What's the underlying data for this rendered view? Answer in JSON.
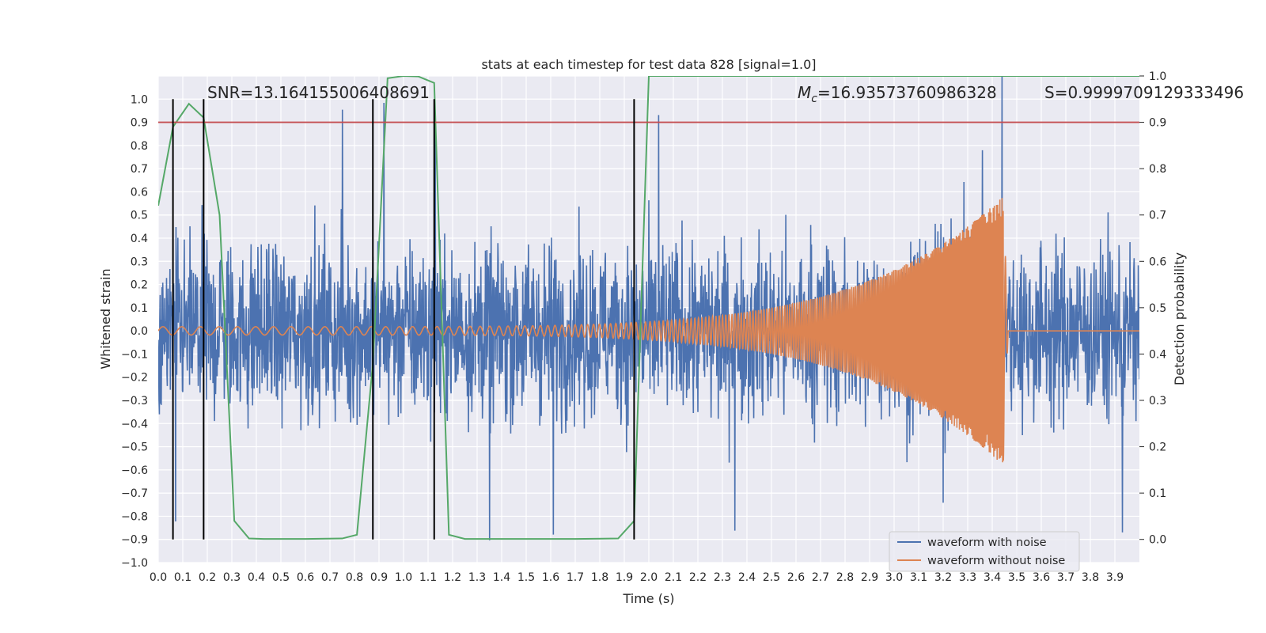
{
  "chart_data": {
    "type": "line",
    "title": "stats at each timestep for test data 828 [signal=1.0]",
    "xlabel": "Time (s)",
    "ylabel": "Whitened strain",
    "y2label": "Detection probability",
    "xlim": [
      0.0,
      4.0
    ],
    "ylim": [
      -1.0,
      1.1
    ],
    "y2lim": [
      -0.05,
      1.0
    ],
    "x_ticks": [
      0.0,
      0.1,
      0.2,
      0.3,
      0.4,
      0.5,
      0.6,
      0.7,
      0.8,
      0.9,
      1.0,
      1.1,
      1.2,
      1.3,
      1.4,
      1.5,
      1.6,
      1.7,
      1.8,
      1.9,
      2.0,
      2.1,
      2.2,
      2.3,
      2.4,
      2.5,
      2.6,
      2.7,
      2.8,
      2.9,
      3.0,
      3.1,
      3.2,
      3.3,
      3.4,
      3.5,
      3.6,
      3.7,
      3.8,
      3.9
    ],
    "y_ticks": [
      -1.0,
      -0.9,
      -0.8,
      -0.7,
      -0.6,
      -0.5,
      -0.4,
      -0.3,
      -0.2,
      -0.1,
      0.0,
      0.1,
      0.2,
      0.3,
      0.4,
      0.5,
      0.6,
      0.7,
      0.8,
      0.9,
      1.0
    ],
    "y2_ticks": [
      0.0,
      0.1,
      0.2,
      0.3,
      0.4,
      0.5,
      0.6,
      0.7,
      0.8,
      0.9,
      1.0
    ],
    "grid": true,
    "legend_position": "lower-right",
    "annotations": {
      "snr": "SNR=13.164155006408691",
      "mc_symbol": "M",
      "mc_subscript": "c",
      "mc_value": "=16.93573760986328",
      "s": "S=0.9999709129333496"
    },
    "threshold_line": {
      "axis": "right",
      "value": 0.9,
      "color": "#c44e52"
    },
    "vertical_markers_x": [
      0.06,
      0.185,
      0.875,
      1.125,
      1.94
    ],
    "vertical_markers_yrange": [
      -0.9,
      1.0
    ],
    "series": [
      {
        "name": "waveform with noise",
        "axis": "left",
        "color": "#4c72b0",
        "description_only": false,
        "noise_envelope": {
          "x": [
            0.0,
            4.0
          ],
          "typical_amplitude": 0.35,
          "peak_amplitude": 1.0
        },
        "notable_peaks": [
          {
            "x": 0.75,
            "y": 0.95
          },
          {
            "x": 0.92,
            "y": 0.98
          },
          {
            "x": 1.13,
            "y": 0.93
          },
          {
            "x": 2.04,
            "y": 0.92
          },
          {
            "x": 3.36,
            "y": 0.93
          },
          {
            "x": 3.44,
            "y": 1.0
          },
          {
            "x": 1.35,
            "y": -0.91
          },
          {
            "x": 3.2,
            "y": -0.85
          },
          {
            "x": 3.93,
            "y": -0.87
          },
          {
            "x": 0.07,
            "y": -0.82
          },
          {
            "x": 2.35,
            "y": -0.88
          },
          {
            "x": 1.61,
            "y": -0.88
          }
        ]
      },
      {
        "name": "waveform without noise",
        "axis": "left",
        "color": "#dd8452",
        "chirp": {
          "x_start": 0.0,
          "x_merger": 3.445,
          "x_end": 4.0,
          "amp_start": 0.018,
          "amp_merger": 0.58,
          "freq_start_hz": 13.0,
          "freq_merger_hz": 60.0
        }
      },
      {
        "name": "",
        "axis": "right",
        "color": "#55a868",
        "x": [
          0.0,
          0.06,
          0.125,
          0.185,
          0.25,
          0.31,
          0.37,
          0.43,
          0.5,
          0.6,
          0.75,
          0.81,
          0.875,
          0.935,
          1.0,
          1.06,
          1.125,
          1.185,
          1.25,
          1.31,
          1.4,
          1.5,
          1.6,
          1.7,
          1.875,
          1.94,
          2.0,
          2.06,
          2.5,
          3.0,
          3.5,
          4.0
        ],
        "y": [
          0.72,
          0.89,
          0.94,
          0.91,
          0.7,
          0.04,
          0.002,
          0.001,
          0.001,
          0.001,
          0.002,
          0.01,
          0.38,
          0.995,
          1.0,
          0.999,
          0.985,
          0.01,
          0.001,
          0.001,
          0.001,
          0.001,
          0.001,
          0.001,
          0.002,
          0.04,
          1.0,
          1.0,
          1.0,
          1.0,
          1.0,
          1.0
        ]
      }
    ]
  }
}
